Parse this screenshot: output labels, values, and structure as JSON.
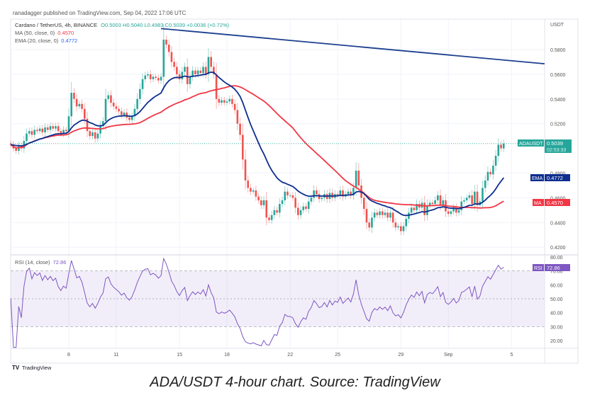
{
  "header": {
    "published": "ranadagger published on TradingView.com, Sep 04, 2022 17:06 UTC",
    "symbol": "Cardano / TetherUS, 4h, BINANCE",
    "ohlc": "O0.5003  H0.5040  L0.4983  C0.5039  +0.0036 (+0.72%)",
    "ma_label": "MA (50, close, 0)",
    "ma_value": "0.4570",
    "ema_label": "EMA (20, close, 0)",
    "ema_value": "0.4772",
    "rsi_label": "RSI (14, close)",
    "rsi_value": "72.86"
  },
  "price_axis": {
    "unit": "USDT",
    "ticks": [
      "0.5800",
      "0.5600",
      "0.5400",
      "0.5200",
      "0.4800",
      "0.4600",
      "0.4400",
      "0.4200"
    ]
  },
  "tags": {
    "symbol": {
      "label": "ADAUSDT",
      "value": "0.5039",
      "countdown": "02:53:33",
      "color": "#26a69a"
    },
    "ema": {
      "label": "EMA",
      "value": "0.4772",
      "color": "#0d2e8f"
    },
    "ma": {
      "label": "MA",
      "value": "0.4570",
      "color": "#f23645"
    },
    "rsi": {
      "label": "RSI",
      "value": "72.86",
      "color": "#7e57c2"
    }
  },
  "rsi_axis": {
    "ticks": [
      "80.00",
      "70.00",
      "60.00",
      "50.00",
      "40.00",
      "30.00",
      "20.00"
    ]
  },
  "time_axis": {
    "ticks": [
      {
        "label": "8",
        "date": "2022-08-08"
      },
      {
        "label": "11",
        "date": "2022-08-11"
      },
      {
        "label": "15",
        "date": "2022-08-15"
      },
      {
        "label": "18",
        "date": "2022-08-18"
      },
      {
        "label": "22",
        "date": "2022-08-22"
      },
      {
        "label": "25",
        "date": "2022-08-25"
      },
      {
        "label": "29",
        "date": "2022-08-29"
      },
      {
        "label": "Sep",
        "date": "2022-09-01"
      },
      {
        "label": "5",
        "date": "2022-09-05"
      }
    ]
  },
  "branding": {
    "logo": "TradingView"
  },
  "caption": "ADA/USDT 4-hour chart. Source: TradingView",
  "chart_data": {
    "type": "candlestick",
    "interval": "4h",
    "start": "2022-08-04 08:00",
    "ylim": [
      0.41,
      0.6
    ],
    "rsi_ylim": [
      15,
      85
    ],
    "colors": {
      "up": "#26a69a",
      "down": "#ef5350",
      "ema": "#0d2e8f",
      "ma": "#f23645",
      "rsi": "#7e57c2",
      "trendline": "#1c3f8f"
    },
    "closes": [
      0.503,
      0.5,
      0.498,
      0.502,
      0.5,
      0.506,
      0.512,
      0.514,
      0.511,
      0.515,
      0.514,
      0.516,
      0.513,
      0.517,
      0.515,
      0.518,
      0.516,
      0.518,
      0.514,
      0.512,
      0.515,
      0.514,
      0.526,
      0.545,
      0.54,
      0.534,
      0.536,
      0.532,
      0.524,
      0.514,
      0.51,
      0.513,
      0.508,
      0.512,
      0.518,
      0.522,
      0.54,
      0.543,
      0.537,
      0.534,
      0.532,
      0.53,
      0.527,
      0.529,
      0.525,
      0.523,
      0.526,
      0.532,
      0.54,
      0.548,
      0.556,
      0.559,
      0.56,
      0.556,
      0.558,
      0.557,
      0.555,
      0.558,
      0.588,
      0.584,
      0.578,
      0.57,
      0.566,
      0.56,
      0.556,
      0.562,
      0.566,
      0.552,
      0.558,
      0.563,
      0.56,
      0.563,
      0.561,
      0.566,
      0.56,
      0.574,
      0.566,
      0.56,
      0.54,
      0.537,
      0.539,
      0.537,
      0.538,
      0.54,
      0.536,
      0.531,
      0.52,
      0.511,
      0.491,
      0.474,
      0.468,
      0.465,
      0.466,
      0.461,
      0.458,
      0.454,
      0.458,
      0.444,
      0.442,
      0.446,
      0.45,
      0.448,
      0.455,
      0.458,
      0.465,
      0.462,
      0.462,
      0.46,
      0.452,
      0.446,
      0.45,
      0.453,
      0.451,
      0.457,
      0.46,
      0.466,
      0.463,
      0.459,
      0.46,
      0.463,
      0.459,
      0.464,
      0.46,
      0.463,
      0.462,
      0.466,
      0.461,
      0.463,
      0.465,
      0.462,
      0.468,
      0.482,
      0.47,
      0.46,
      0.451,
      0.44,
      0.436,
      0.444,
      0.448,
      0.446,
      0.449,
      0.446,
      0.448,
      0.444,
      0.448,
      0.44,
      0.436,
      0.437,
      0.433,
      0.437,
      0.443,
      0.448,
      0.452,
      0.45,
      0.455,
      0.452,
      0.456,
      0.446,
      0.454,
      0.456,
      0.455,
      0.458,
      0.462,
      0.454,
      0.458,
      0.449,
      0.447,
      0.449,
      0.452,
      0.448,
      0.45,
      0.457,
      0.458,
      0.46,
      0.462,
      0.455,
      0.465,
      0.454,
      0.457,
      0.468,
      0.474,
      0.481,
      0.479,
      0.486,
      0.494,
      0.503,
      0.5,
      0.5039
    ],
    "trendline": {
      "from": [
        "2022-08-13 20:00",
        0.597
      ],
      "to": [
        "2022-09-07 02:00",
        0.5685
      ]
    },
    "indicators": [
      "EMA 20",
      "MA 50",
      "RSI 14"
    ],
    "grid": true
  }
}
